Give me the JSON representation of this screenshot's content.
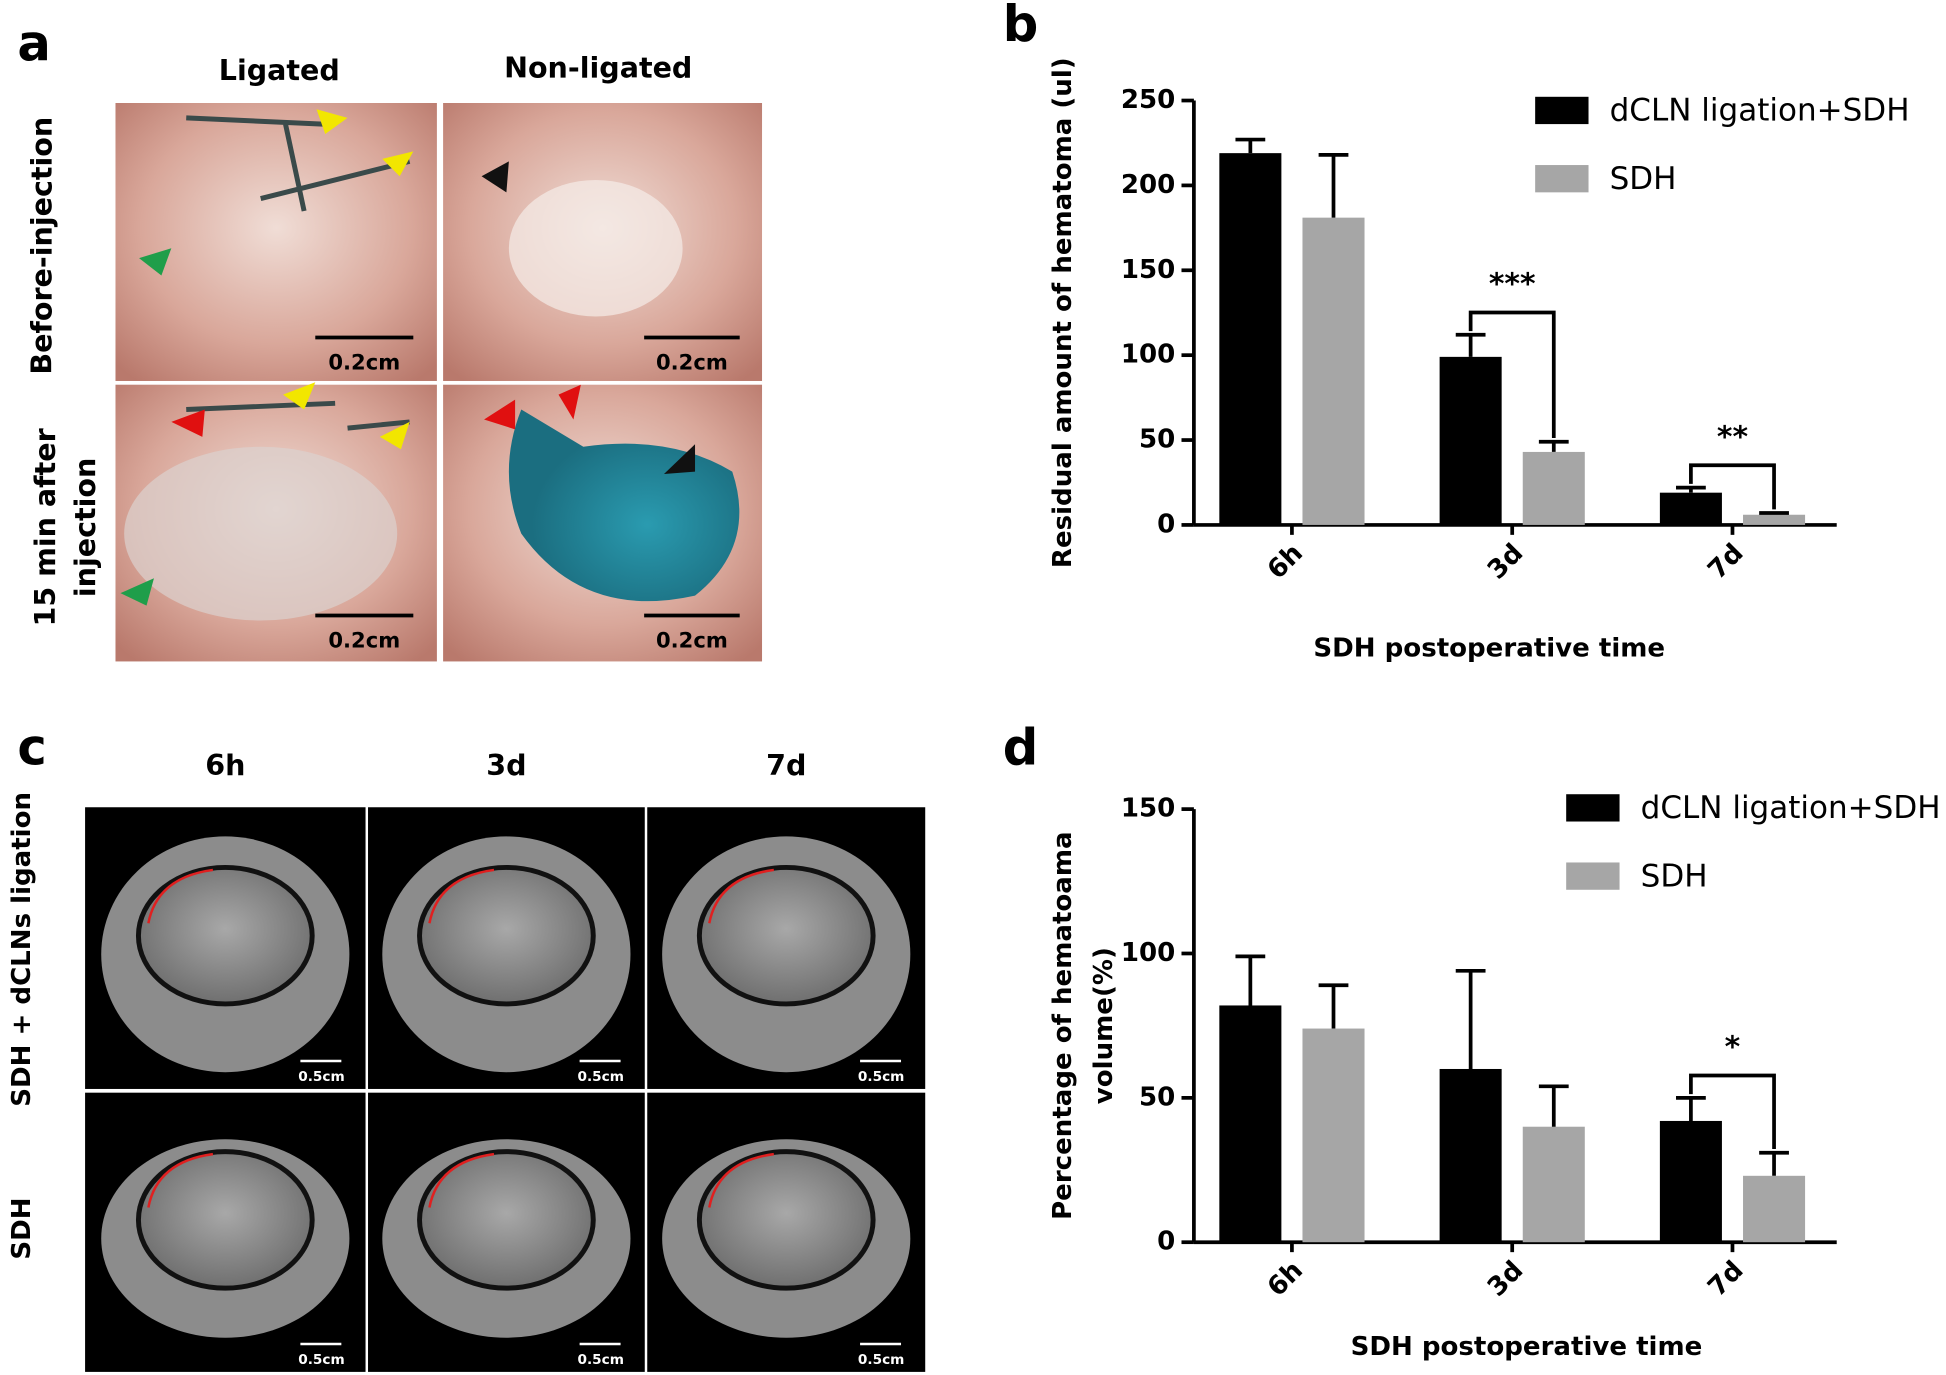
{
  "panel_a": {
    "label": "a",
    "columns": [
      "Ligated",
      "Non-ligated"
    ],
    "rows": [
      [
        "Before-injection"
      ],
      [
        "15 min after",
        "injection"
      ]
    ],
    "scale_bars": [
      "0.2cm",
      "0.2cm",
      "0.2cm",
      "0.2cm"
    ]
  },
  "panel_c": {
    "label": "c",
    "columns": [
      "6h",
      "3d",
      "7d"
    ],
    "rows": [
      "SDH + dCLNs ligation",
      "SDH"
    ],
    "scale_bars": [
      "0.5cm",
      "0.5cm",
      "0.5cm",
      "0.5cm",
      "0.5cm",
      "0.5cm"
    ]
  },
  "chart_data": [
    {
      "type": "bar",
      "panel": "b",
      "ylabel": [
        "Residual amount of hematoma (ul)"
      ],
      "xlabel": "SDH postoperative time",
      "categories": [
        "6h",
        "3d",
        "7d"
      ],
      "series": [
        {
          "name": "dCLN ligation+SDH",
          "color": "#000000",
          "values": [
            219,
            99,
            19
          ],
          "errors": [
            8,
            13,
            3
          ]
        },
        {
          "name": "SDH",
          "color": "#a6a6a6",
          "values": [
            181,
            43,
            6
          ],
          "errors": [
            37,
            6,
            1
          ]
        }
      ],
      "ylim": [
        0,
        250
      ],
      "yticks": [
        0,
        50,
        100,
        150,
        200,
        250
      ],
      "significance": [
        null,
        "***",
        "**"
      ],
      "legend": "upper right"
    },
    {
      "type": "bar",
      "panel": "d",
      "ylabel": [
        "Percentage of hematoama",
        "volume(%)"
      ],
      "xlabel": "SDH postoperative time",
      "categories": [
        "6h",
        "3d",
        "7d"
      ],
      "series": [
        {
          "name": "dCLN ligation+SDH",
          "color": "#000000",
          "values": [
            82,
            60,
            42
          ],
          "errors": [
            17,
            34,
            8
          ]
        },
        {
          "name": "SDH",
          "color": "#a6a6a6",
          "values": [
            74,
            40,
            23
          ],
          "errors": [
            15,
            14,
            8
          ]
        }
      ],
      "ylim": [
        0,
        150
      ],
      "yticks": [
        0,
        50,
        100,
        150
      ],
      "significance": [
        null,
        null,
        "*"
      ],
      "legend": "upper right"
    }
  ]
}
